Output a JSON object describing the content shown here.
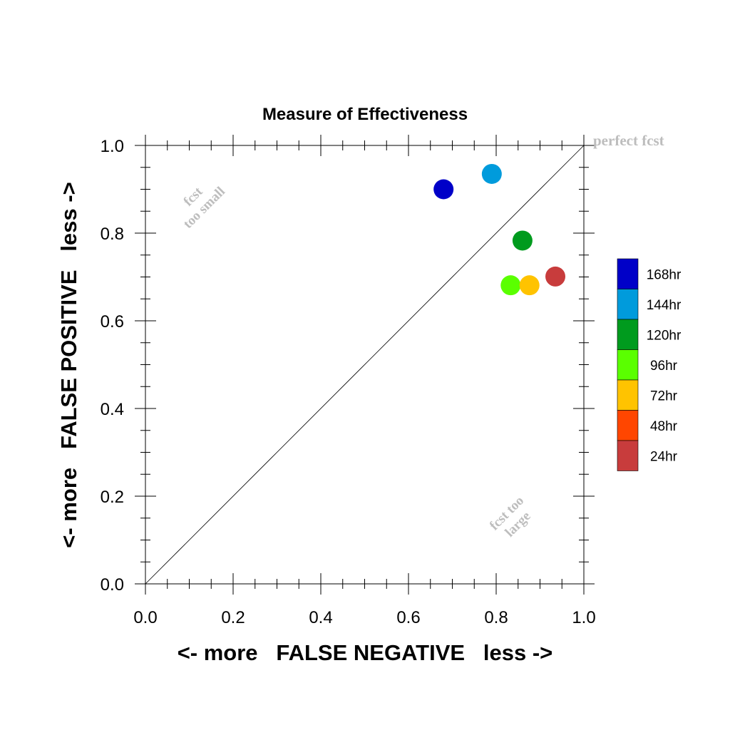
{
  "chart_data": {
    "type": "scatter",
    "title": "Measure of Effectiveness",
    "xlabel": "<- more   FALSE NEGATIVE   less ->",
    "ylabel": "<- more   FALSE POSITIVE   less ->",
    "xlim": [
      0.0,
      1.0
    ],
    "ylim": [
      0.0,
      1.0
    ],
    "x_ticks": [
      "0.0",
      "0.2",
      "0.4",
      "0.6",
      "0.8",
      "1.0"
    ],
    "y_ticks": [
      "0.0",
      "0.2",
      "0.4",
      "0.6",
      "0.8",
      "1.0"
    ],
    "grid": false,
    "diagonal_line": true,
    "legend_position": "right",
    "annotations": {
      "perfect": "perfect fcst",
      "too_small_line1": "fcst",
      "too_small_line2": "too small",
      "too_large_line1": "fcst too",
      "too_large_line2": "large"
    },
    "series": [
      {
        "name": "168hr",
        "color": "#0000c8",
        "x": 0.68,
        "y": 0.9
      },
      {
        "name": "144hr",
        "color": "#009bdc",
        "x": 0.79,
        "y": 0.935
      },
      {
        "name": "120hr",
        "color": "#009b1e",
        "x": 0.86,
        "y": 0.783
      },
      {
        "name": "96hr",
        "color": "#5aff00",
        "x": 0.833,
        "y": 0.681
      },
      {
        "name": "72hr",
        "color": "#ffc300",
        "x": 0.876,
        "y": 0.681
      },
      {
        "name": "48hr",
        "color": "#ff4600",
        "x": null,
        "y": null
      },
      {
        "name": "24hr",
        "color": "#c83c3c",
        "x": 0.935,
        "y": 0.701
      }
    ]
  }
}
